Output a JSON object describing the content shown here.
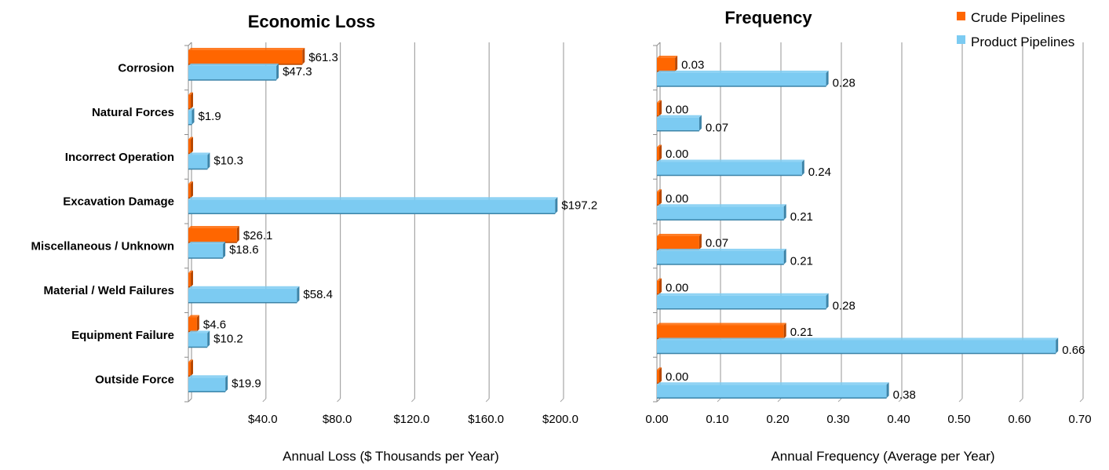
{
  "colors": {
    "crude": "#FF6600",
    "crude_side": "#B84800",
    "product": "#7CCBF2",
    "product_side": "#3D84A8",
    "grid": "#A6A6A6",
    "axis": "#8C8C8C"
  },
  "legend": [
    {
      "name": "Crude Pipelines",
      "color": "#FF6600"
    },
    {
      "name": "Product Pipelines",
      "color": "#7CCBF2"
    }
  ],
  "chart_data": [
    {
      "type": "bar",
      "orientation": "horizontal",
      "title": "Economic Loss",
      "xlabel": "Annual Loss ($ Thousands per Year)",
      "ylabel": "",
      "categories": [
        "Corrosion",
        "Natural Forces",
        "Incorrect Operation",
        "Excavation Damage",
        "Miscellaneous / Unknown",
        "Material / Weld Failures",
        "Equipment Failure",
        "Outside Force"
      ],
      "series": [
        {
          "name": "Crude Pipelines",
          "color": "#FF6600",
          "values": [
            61.3,
            0.0,
            0.0,
            0.0,
            26.1,
            0.0,
            4.6,
            0.0
          ],
          "labels": [
            "$61.3",
            "",
            "",
            "",
            "$26.1",
            "",
            "$4.6",
            ""
          ]
        },
        {
          "name": "Product Pipelines",
          "color": "#7CCBF2",
          "values": [
            47.3,
            1.9,
            10.3,
            197.2,
            18.6,
            58.4,
            10.2,
            19.9
          ],
          "labels": [
            "$47.3",
            "$1.9",
            "$10.3",
            "$197.2",
            "$18.6",
            "$58.4",
            "$10.2",
            "$19.9"
          ]
        }
      ],
      "xlim": [
        0,
        200
      ],
      "ticks": [
        40,
        80,
        120,
        160,
        200
      ],
      "tick_labels": [
        "$40.0",
        "$80.0",
        "$120.0",
        "$160.0",
        "$200.0"
      ],
      "grid": true
    },
    {
      "type": "bar",
      "orientation": "horizontal",
      "title": "Frequency",
      "xlabel": "Annual Frequency (Average per Year)",
      "ylabel": "",
      "categories": [
        "Corrosion",
        "Natural Forces",
        "Incorrect Operation",
        "Excavation Damage",
        "Miscellaneous / Unknown",
        "Material / Weld Failures",
        "Equipment Failure",
        "Outside Force"
      ],
      "series": [
        {
          "name": "Crude Pipelines",
          "color": "#FF6600",
          "values": [
            0.03,
            0.0,
            0.0,
            0.0,
            0.07,
            0.0,
            0.21,
            0.0
          ],
          "labels": [
            "0.03",
            "0.00",
            "0.00",
            "0.00",
            "0.07",
            "0.00",
            "0.21",
            "0.00"
          ]
        },
        {
          "name": "Product Pipelines",
          "color": "#7CCBF2",
          "values": [
            0.28,
            0.07,
            0.24,
            0.21,
            0.21,
            0.28,
            0.66,
            0.38
          ],
          "labels": [
            "0.28",
            "0.07",
            "0.24",
            "0.21",
            "0.21",
            "0.28",
            "0.66",
            "0.38"
          ]
        }
      ],
      "xlim": [
        0,
        0.7
      ],
      "ticks": [
        0.0,
        0.1,
        0.2,
        0.3,
        0.4,
        0.5,
        0.6,
        0.7
      ],
      "tick_labels": [
        "0.00",
        "0.10",
        "0.20",
        "0.30",
        "0.40",
        "0.50",
        "0.60",
        "0.70"
      ],
      "grid": true,
      "legend_position": "top-right"
    }
  ]
}
